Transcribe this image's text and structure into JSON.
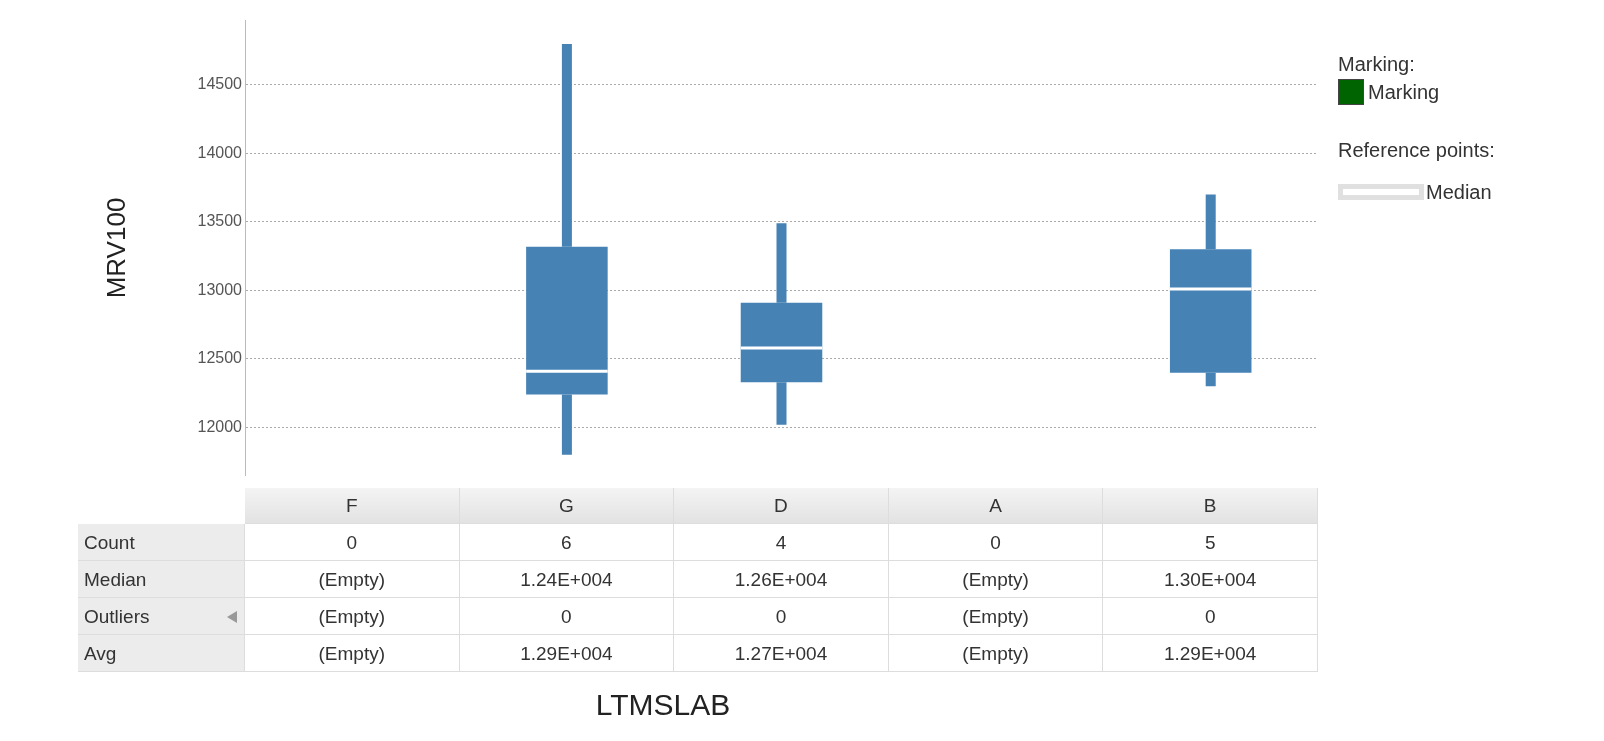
{
  "chart_data": {
    "type": "box",
    "ylabel": "MRV100",
    "categories": [
      "F",
      "G",
      "D",
      "A",
      "B"
    ],
    "color": "#4682b4",
    "boxes": [
      null,
      {
        "low": 11800,
        "q1": 12240,
        "median": 12410,
        "q3": 13320,
        "high": 14800
      },
      {
        "low": 12020,
        "q1": 12330,
        "median": 12580,
        "q3": 12910,
        "high": 13490
      },
      null,
      {
        "low": 12300,
        "q1": 12400,
        "median": 13010,
        "q3": 13300,
        "high": 13700
      }
    ],
    "ylim": [
      11650,
      14970
    ],
    "yticks": [
      12000,
      12500,
      13000,
      13500,
      14000,
      14500
    ],
    "grid": "y",
    "annotations": [
      "Marking:",
      "Marking",
      "Reference points:",
      "Median",
      "LTMSLAB",
      "Count",
      "0",
      "6",
      "4",
      "0",
      "5",
      "Median",
      "(Empty)",
      "1.24E+004",
      "1.26E+004",
      "(Empty)",
      "1.30E+004",
      "Outliers",
      "(Empty)",
      "0",
      "0",
      "(Empty)",
      "0",
      "Avg",
      "(Empty)",
      "1.29E+004",
      "1.27E+004",
      "(Empty)",
      "1.29E+004"
    ]
  }
}
